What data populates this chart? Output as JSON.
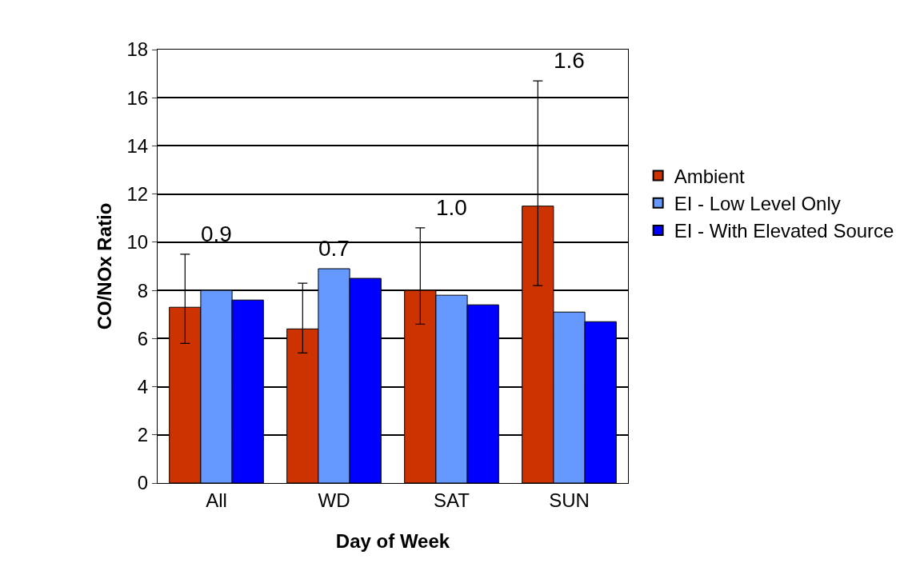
{
  "chart_data": {
    "type": "bar",
    "xlabel": "Day of Week",
    "ylabel": "CO/NOx Ratio",
    "categories": [
      "All",
      "WD",
      "SAT",
      "SUN"
    ],
    "series": [
      {
        "name": "Ambient",
        "color": "#cc3300",
        "values": [
          7.3,
          6.4,
          8.0,
          11.5
        ],
        "errors": [
          [
            5.8,
            9.5
          ],
          [
            5.4,
            8.3
          ],
          [
            6.6,
            10.6
          ],
          [
            8.2,
            16.7
          ]
        ]
      },
      {
        "name": "EI - Low Level Only",
        "color": "#6699ff",
        "values": [
          8.0,
          8.9,
          7.8,
          7.1
        ]
      },
      {
        "name": "EI - With Elevated Source",
        "color": "#0000ff",
        "values": [
          7.6,
          8.5,
          7.4,
          6.7
        ]
      }
    ],
    "annotations": [
      "0.9",
      "0.7",
      "1.0",
      "1.6"
    ],
    "ylim": [
      0,
      18
    ],
    "yticks": [
      0,
      2,
      4,
      6,
      8,
      10,
      12,
      14,
      16,
      18
    ],
    "grid": "y",
    "legend": "right"
  }
}
